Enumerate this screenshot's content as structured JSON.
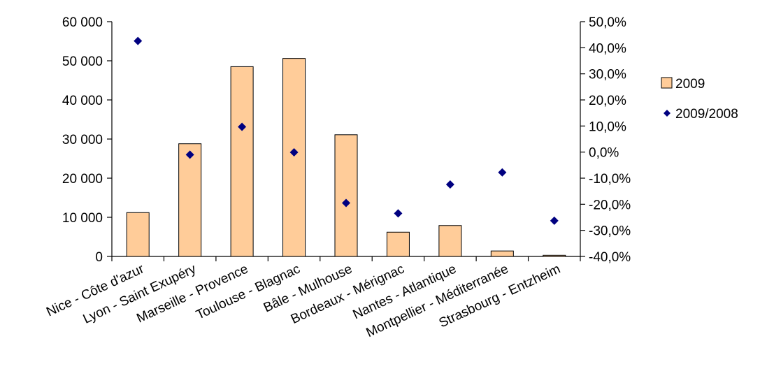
{
  "chart_data": {
    "type": "bar",
    "categories": [
      "Nice - Côte d'azur",
      "Lyon - Saint Exupéry",
      "Marseille - Provence",
      "Toulouse - Blagnac",
      "Bâle - Mulhouse",
      "Bordeaux - Mérignac",
      "Nantes - Atlantique",
      "Montpellier - Méditerranée",
      "Strasbourg - Entzheim"
    ],
    "series": [
      {
        "name": "2009",
        "kind": "bar",
        "axis": "left",
        "color": "#FFCC99",
        "values": [
          11200,
          28800,
          48500,
          50600,
          31100,
          6200,
          7900,
          1400,
          300
        ]
      },
      {
        "name": "2009/2008",
        "kind": "scatter",
        "axis": "right",
        "marker": "diamond",
        "color": "#000080",
        "values": [
          0.426,
          -0.01,
          0.097,
          -0.001,
          -0.195,
          -0.235,
          -0.124,
          -0.078,
          -0.263
        ]
      }
    ],
    "y_left": {
      "range": [
        0,
        60000
      ],
      "ticks": [
        0,
        10000,
        20000,
        30000,
        40000,
        50000,
        60000
      ],
      "tick_labels": [
        "0",
        "10 000",
        "20 000",
        "30 000",
        "40 000",
        "50 000",
        "60 000"
      ]
    },
    "y_right": {
      "range": [
        -0.4,
        0.5
      ],
      "ticks": [
        -0.4,
        -0.3,
        -0.2,
        -0.1,
        0,
        0.1,
        0.2,
        0.3,
        0.4,
        0.5
      ],
      "tick_labels": [
        "-40,0%",
        "-30,0%",
        "-20,0%",
        "-10,0%",
        "0,0%",
        "10,0%",
        "20,0%",
        "30,0%",
        "40,0%",
        "50,0%"
      ]
    },
    "grid": false,
    "legend": {
      "position": "right",
      "entries": [
        "2009",
        "2009/2008"
      ]
    }
  }
}
